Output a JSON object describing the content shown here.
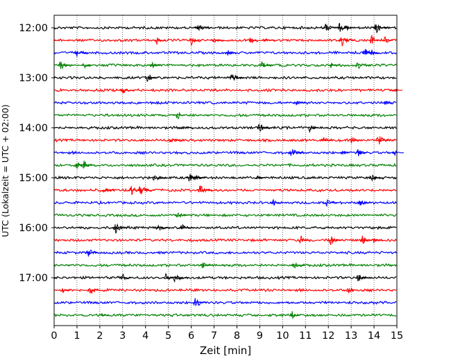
{
  "chart_data": {
    "type": "line",
    "xlabel": "Zeit  [min]",
    "ylabel": "UTC (Lokalzeit = UTC + 02:00)",
    "xlim": [
      0,
      15
    ],
    "x_ticks": [
      "0",
      "1",
      "2",
      "3",
      "4",
      "5",
      "6",
      "7",
      "8",
      "9",
      "10",
      "11",
      "12",
      "13",
      "14",
      "15"
    ],
    "y_ticks": [
      "12:00",
      "13:00",
      "14:00",
      "15:00",
      "16:00",
      "17:00"
    ],
    "grid": "vertical dotted",
    "trace_colors": [
      "#000000",
      "#ff0000",
      "#0000ff",
      "#008000"
    ],
    "traces": [
      {
        "start": "12:00",
        "color": "#000000",
        "events": [
          6.3,
          11.9,
          12.5,
          12.8,
          14.1
        ]
      },
      {
        "start": "12:15",
        "color": "#ff0000",
        "events": [
          4.5,
          6.0,
          7.0,
          8.6,
          9.2,
          12.6,
          13.9,
          14.5
        ]
      },
      {
        "start": "12:30",
        "color": "#0000ff",
        "events": [
          1.0,
          7.6,
          13.6,
          13.9
        ]
      },
      {
        "start": "12:45",
        "color": "#008000",
        "events": [
          0.3,
          1.3,
          4.3,
          9.1,
          12.1,
          13.3
        ]
      },
      {
        "start": "13:00",
        "color": "#000000",
        "events": [
          4.1,
          7.8
        ]
      },
      {
        "start": "13:15",
        "color": "#ff0000",
        "events": [
          3.0,
          14.8
        ]
      },
      {
        "start": "13:30",
        "color": "#0000ff",
        "events": [
          10.6,
          14.5
        ]
      },
      {
        "start": "13:45",
        "color": "#008000",
        "events": [
          5.4
        ]
      },
      {
        "start": "14:00",
        "color": "#000000",
        "events": [
          5.6,
          9.0,
          11.2
        ]
      },
      {
        "start": "14:15",
        "color": "#ff0000",
        "events": [
          5.1,
          11.8,
          13.0,
          14.2
        ]
      },
      {
        "start": "14:30",
        "color": "#0000ff",
        "events": [
          10.4,
          12.6,
          13.3,
          14.9
        ]
      },
      {
        "start": "14:45",
        "color": "#008000",
        "events": [
          1.0,
          1.3
        ]
      },
      {
        "start": "15:00",
        "color": "#000000",
        "events": [
          4.4,
          5.9,
          6.2,
          8.9,
          13.9
        ]
      },
      {
        "start": "15:15",
        "color": "#ff0000",
        "events": [
          2.2,
          3.4,
          3.8,
          6.4
        ]
      },
      {
        "start": "15:30",
        "color": "#0000ff",
        "events": [
          9.6,
          11.9,
          13.4
        ]
      },
      {
        "start": "15:45",
        "color": "#008000",
        "events": [
          5.4
        ]
      },
      {
        "start": "16:00",
        "color": "#000000",
        "events": [
          2.7,
          4.6,
          5.6
        ]
      },
      {
        "start": "16:15",
        "color": "#ff0000",
        "events": [
          10.8,
          12.1,
          13.5,
          14.0
        ]
      },
      {
        "start": "16:30",
        "color": "#0000ff",
        "events": [
          1.5
        ]
      },
      {
        "start": "16:45",
        "color": "#008000",
        "events": [
          6.5,
          10.5
        ]
      },
      {
        "start": "17:00",
        "color": "#000000",
        "events": [
          3.0,
          4.9,
          5.3,
          13.3
        ]
      },
      {
        "start": "17:15",
        "color": "#ff0000",
        "events": [
          0.4,
          1.6,
          12.9
        ]
      },
      {
        "start": "17:30",
        "color": "#0000ff",
        "events": [
          6.2
        ]
      },
      {
        "start": "17:45",
        "color": "#008000",
        "events": [
          2.1,
          10.4
        ]
      }
    ]
  }
}
